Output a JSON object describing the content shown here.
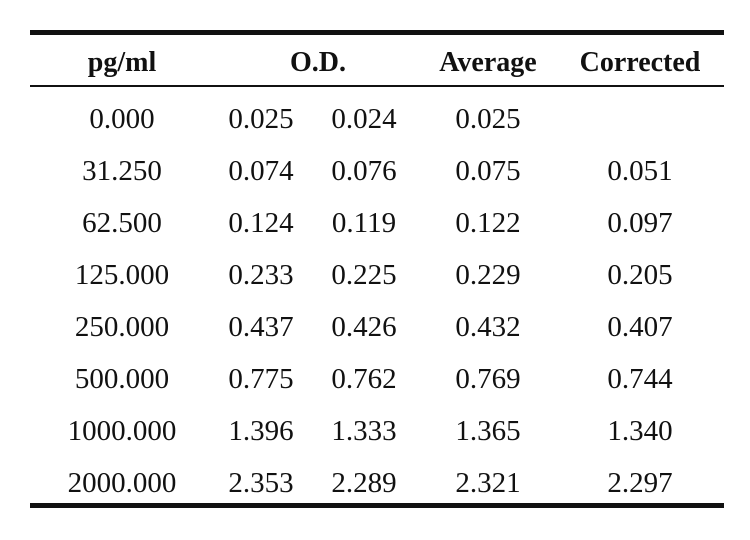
{
  "table": {
    "headers": {
      "conc": "pg/ml",
      "od": "O.D.",
      "average": "Average",
      "corrected": "Corrected"
    },
    "rows": [
      {
        "conc": "0.000",
        "od1": "0.025",
        "od2": "0.024",
        "average": "0.025",
        "corrected": ""
      },
      {
        "conc": "31.250",
        "od1": "0.074",
        "od2": "0.076",
        "average": "0.075",
        "corrected": "0.051"
      },
      {
        "conc": "62.500",
        "od1": "0.124",
        "od2": "0.119",
        "average": "0.122",
        "corrected": "0.097"
      },
      {
        "conc": "125.000",
        "od1": "0.233",
        "od2": "0.225",
        "average": "0.229",
        "corrected": "0.205"
      },
      {
        "conc": "250.000",
        "od1": "0.437",
        "od2": "0.426",
        "average": "0.432",
        "corrected": "0.407"
      },
      {
        "conc": "500.000",
        "od1": "0.775",
        "od2": "0.762",
        "average": "0.769",
        "corrected": "0.744"
      },
      {
        "conc": "1000.000",
        "od1": "1.396",
        "od2": "1.333",
        "average": "1.365",
        "corrected": "1.340"
      },
      {
        "conc": "2000.000",
        "od1": "2.353",
        "od2": "2.289",
        "average": "2.321",
        "corrected": "2.297"
      }
    ]
  }
}
